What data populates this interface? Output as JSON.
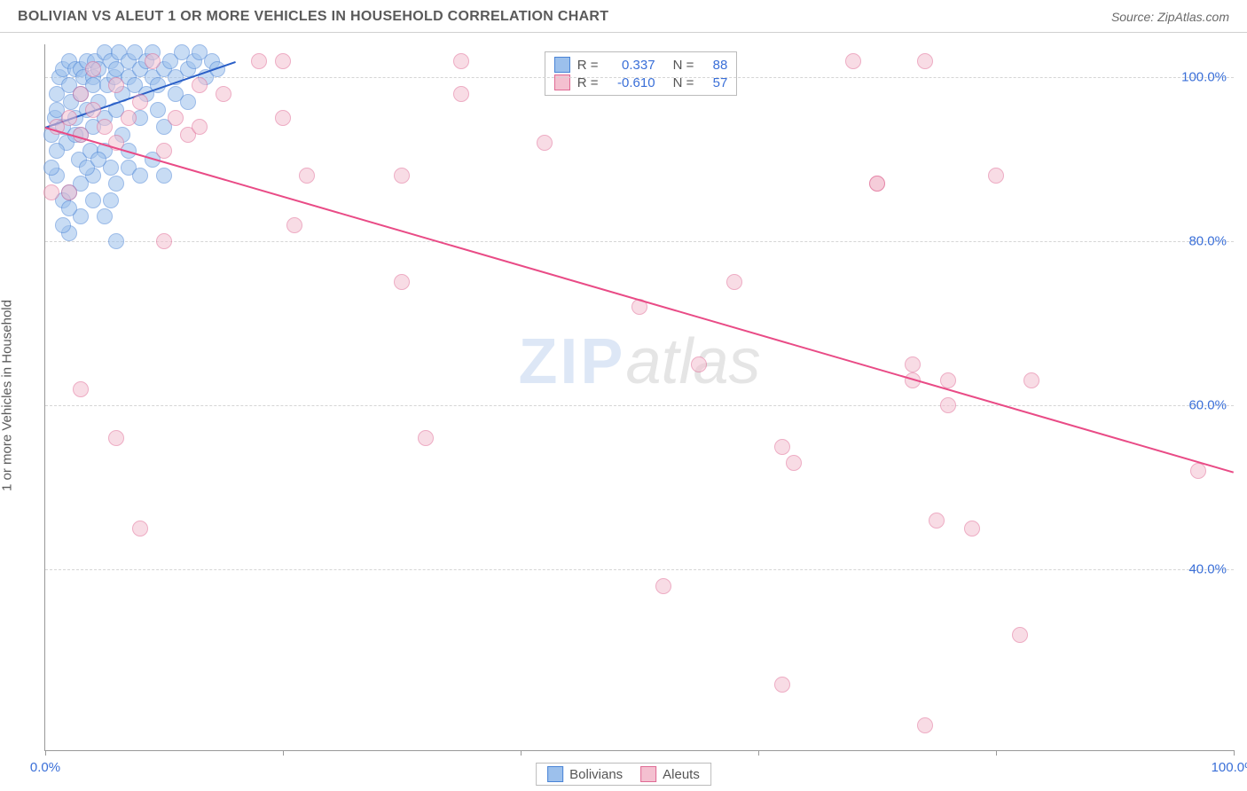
{
  "header": {
    "title": "BOLIVIAN VS ALEUT 1 OR MORE VEHICLES IN HOUSEHOLD CORRELATION CHART",
    "source": "Source: ZipAtlas.com"
  },
  "chart": {
    "type": "scatter",
    "y_axis_label": "1 or more Vehicles in Household",
    "x_range": [
      0,
      100
    ],
    "y_range": [
      18,
      104
    ],
    "x_ticks": [
      {
        "pos": 0,
        "label": "0.0%"
      },
      {
        "pos": 20,
        "label": ""
      },
      {
        "pos": 40,
        "label": ""
      },
      {
        "pos": 60,
        "label": ""
      },
      {
        "pos": 80,
        "label": ""
      },
      {
        "pos": 100,
        "label": "100.0%"
      }
    ],
    "y_ticks": [
      {
        "pos": 40,
        "label": "40.0%"
      },
      {
        "pos": 60,
        "label": "60.0%"
      },
      {
        "pos": 80,
        "label": "80.0%"
      },
      {
        "pos": 100,
        "label": "100.0%"
      }
    ],
    "background_color": "#ffffff",
    "grid_color": "#d5d5d5",
    "axis_color": "#999999",
    "tick_label_color": "#3a6fd8",
    "marker_radius": 9,
    "marker_opacity": 0.55,
    "series": [
      {
        "name": "Bolivians",
        "fill_color": "#9cc0ec",
        "stroke_color": "#4a84d6",
        "regression": {
          "x1": 0,
          "y1": 94,
          "x2": 16,
          "y2": 102,
          "color": "#2a5fc7",
          "width": 2
        },
        "stats": {
          "R": "0.337",
          "N": "88"
        },
        "points": [
          [
            0.5,
            93
          ],
          [
            0.8,
            95
          ],
          [
            1,
            96
          ],
          [
            1,
            98
          ],
          [
            1.2,
            100
          ],
          [
            1.5,
            101
          ],
          [
            1.5,
            94
          ],
          [
            1.8,
            92
          ],
          [
            2,
            99
          ],
          [
            2,
            102
          ],
          [
            2.2,
            97
          ],
          [
            2.5,
            101
          ],
          [
            2.5,
            95
          ],
          [
            2.8,
            90
          ],
          [
            3,
            101
          ],
          [
            3,
            98
          ],
          [
            3,
            93
          ],
          [
            3.2,
            100
          ],
          [
            3.5,
            102
          ],
          [
            3.5,
            96
          ],
          [
            3.8,
            91
          ],
          [
            4,
            100
          ],
          [
            4,
            99
          ],
          [
            4,
            94
          ],
          [
            4.2,
            102
          ],
          [
            4.5,
            97
          ],
          [
            4.5,
            101
          ],
          [
            5,
            103
          ],
          [
            5,
            95
          ],
          [
            5,
            91
          ],
          [
            5.2,
            99
          ],
          [
            5.5,
            102
          ],
          [
            5.5,
            89
          ],
          [
            5.8,
            100
          ],
          [
            6,
            101
          ],
          [
            6,
            96
          ],
          [
            6.2,
            103
          ],
          [
            6.5,
            98
          ],
          [
            6.5,
            93
          ],
          [
            7,
            102
          ],
          [
            7,
            100
          ],
          [
            7,
            91
          ],
          [
            7.5,
            99
          ],
          [
            7.5,
            103
          ],
          [
            8,
            101
          ],
          [
            8,
            95
          ],
          [
            8.5,
            102
          ],
          [
            8.5,
            98
          ],
          [
            9,
            100
          ],
          [
            9,
            103
          ],
          [
            9.5,
            99
          ],
          [
            9.5,
            96
          ],
          [
            10,
            101
          ],
          [
            10,
            94
          ],
          [
            10.5,
            102
          ],
          [
            11,
            100
          ],
          [
            11,
            98
          ],
          [
            11.5,
            103
          ],
          [
            12,
            101
          ],
          [
            12,
            97
          ],
          [
            12.5,
            102
          ],
          [
            13,
            103
          ],
          [
            13.5,
            100
          ],
          [
            14,
            102
          ],
          [
            14.5,
            101
          ],
          [
            1,
            88
          ],
          [
            2,
            86
          ],
          [
            1.5,
            85
          ],
          [
            3,
            87
          ],
          [
            4,
            88
          ],
          [
            1,
            91
          ],
          [
            2.5,
            93
          ],
          [
            0.5,
            89
          ],
          [
            3.5,
            89
          ],
          [
            4.5,
            90
          ],
          [
            2,
            81
          ],
          [
            5.5,
            85
          ],
          [
            6,
            87
          ],
          [
            7,
            89
          ],
          [
            8,
            88
          ],
          [
            9,
            90
          ],
          [
            10,
            88
          ],
          [
            5,
            83
          ],
          [
            3,
            83
          ],
          [
            1.5,
            82
          ],
          [
            2,
            84
          ],
          [
            6,
            80
          ],
          [
            4,
            85
          ]
        ]
      },
      {
        "name": "Aleuts",
        "fill_color": "#f4c0d0",
        "stroke_color": "#e06a94",
        "regression": {
          "x1": 0,
          "y1": 94,
          "x2": 100,
          "y2": 52,
          "color": "#e94b86",
          "width": 2
        },
        "stats": {
          "R": "-0.610",
          "N": "57"
        },
        "points": [
          [
            1,
            94
          ],
          [
            2,
            95
          ],
          [
            3,
            93
          ],
          [
            4,
            96
          ],
          [
            5,
            94
          ],
          [
            2,
            86
          ],
          [
            6,
            92
          ],
          [
            7,
            95
          ],
          [
            3,
            62
          ],
          [
            6,
            56
          ],
          [
            8,
            45
          ],
          [
            10,
            80
          ],
          [
            12,
            93
          ],
          [
            13,
            99
          ],
          [
            18,
            102
          ],
          [
            20,
            95
          ],
          [
            20,
            102
          ],
          [
            21,
            82
          ],
          [
            22,
            88
          ],
          [
            30,
            75
          ],
          [
            30,
            88
          ],
          [
            32,
            56
          ],
          [
            35,
            98
          ],
          [
            35,
            102
          ],
          [
            42,
            92
          ],
          [
            50,
            72
          ],
          [
            52,
            38
          ],
          [
            55,
            65
          ],
          [
            58,
            75
          ],
          [
            62,
            26
          ],
          [
            62,
            55
          ],
          [
            63,
            53
          ],
          [
            68,
            102
          ],
          [
            70,
            87
          ],
          [
            70,
            87
          ],
          [
            73,
            65
          ],
          [
            73,
            63
          ],
          [
            74,
            102
          ],
          [
            74,
            21
          ],
          [
            75,
            46
          ],
          [
            76,
            63
          ],
          [
            76,
            60
          ],
          [
            78,
            45
          ],
          [
            80,
            88
          ],
          [
            82,
            32
          ],
          [
            83,
            63
          ],
          [
            97,
            52
          ],
          [
            3,
            98
          ],
          [
            4,
            101
          ],
          [
            6,
            99
          ],
          [
            8,
            97
          ],
          [
            9,
            102
          ],
          [
            11,
            95
          ],
          [
            13,
            94
          ],
          [
            15,
            98
          ],
          [
            10,
            91
          ],
          [
            0.5,
            86
          ]
        ]
      }
    ],
    "watermark": {
      "part1": "ZIP",
      "part2": "atlas"
    },
    "stats_box_labels": {
      "r_eq": "R  =",
      "n_eq": "N  ="
    },
    "legend_labels": [
      "Bolivians",
      "Aleuts"
    ]
  }
}
